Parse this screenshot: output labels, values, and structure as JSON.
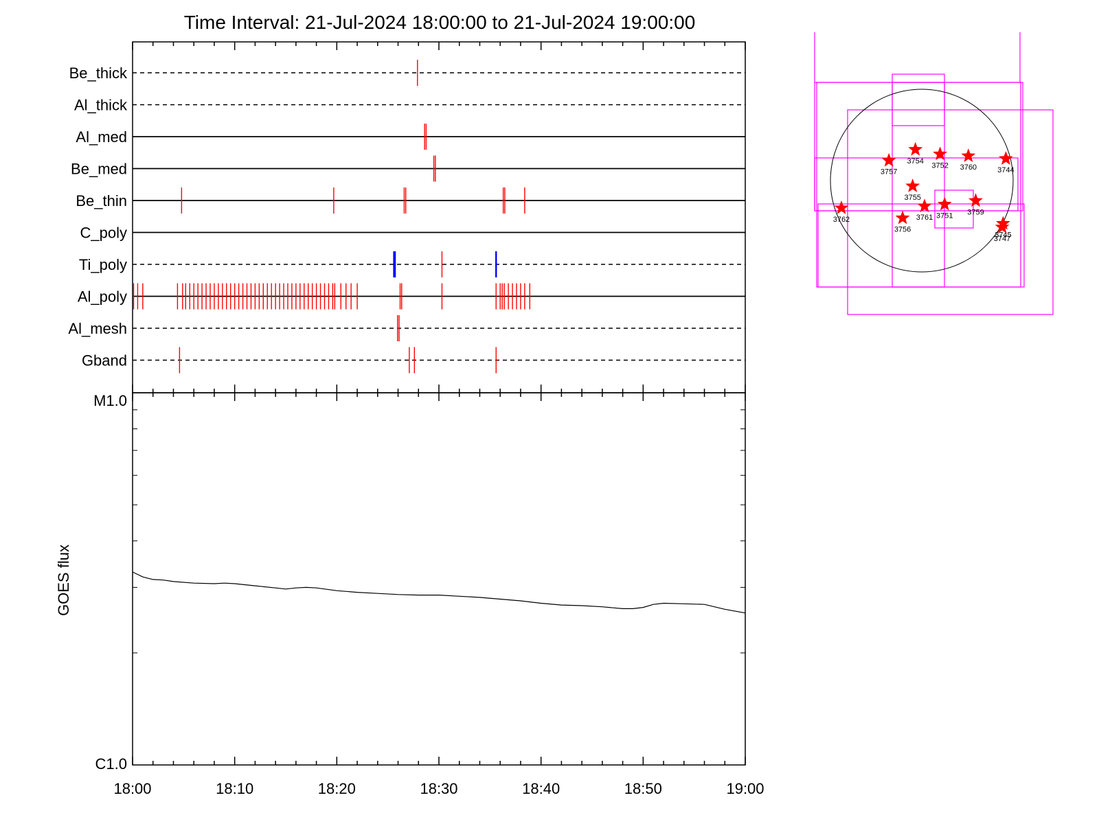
{
  "chart_data": [
    {
      "type": "timeline",
      "title": "Time Interval: 21-Jul-2024 18:00:00 to 21-Jul-2024 19:00:00",
      "x_range": [
        "18:00",
        "19:00"
      ],
      "x_ticks": [
        "18:00",
        "18:10",
        "18:20",
        "18:30",
        "18:40",
        "18:50",
        "19:00"
      ],
      "colors": {
        "event": "#ff0000",
        "event_alt": "#0000ff",
        "row_line": "#000000"
      },
      "rows": [
        {
          "name": "Be_thick",
          "line": "dashed",
          "events": [
            27.9
          ]
        },
        {
          "name": "Al_thick",
          "line": "dashed",
          "events": []
        },
        {
          "name": "Al_med",
          "line": "solid",
          "events": [
            28.6,
            28.75
          ]
        },
        {
          "name": "Be_med",
          "line": "solid",
          "events": [
            29.5,
            29.65
          ]
        },
        {
          "name": "Be_thin",
          "line": "solid",
          "events": [
            4.8,
            19.7,
            26.6,
            26.75,
            36.3,
            36.45,
            38.4
          ]
        },
        {
          "name": "C_poly",
          "line": "solid",
          "events": []
        },
        {
          "name": "Ti_poly",
          "line": "dashed",
          "events": [
            30.3
          ],
          "events_alt": [
            25.6,
            25.7,
            35.6
          ]
        },
        {
          "name": "Al_poly",
          "line": "solid",
          "events": [
            0.1,
            0.5,
            1.0,
            4.4,
            4.9,
            5.2,
            5.6,
            6.0,
            6.4,
            6.8,
            7.2,
            7.6,
            8.0,
            8.4,
            8.8,
            9.2,
            9.6,
            10.0,
            10.4,
            10.8,
            11.2,
            11.6,
            12.0,
            12.4,
            12.8,
            13.2,
            13.6,
            14.0,
            14.4,
            14.8,
            15.2,
            15.6,
            16.0,
            16.4,
            16.8,
            17.2,
            17.6,
            18.0,
            18.4,
            18.8,
            19.2,
            19.6,
            19.8,
            20.4,
            20.9,
            21.4,
            22.0,
            26.2,
            26.35,
            30.3,
            35.6,
            36.0,
            36.2,
            36.4,
            36.8,
            37.2,
            37.6,
            38.0,
            38.4,
            38.9
          ]
        },
        {
          "name": "Al_mesh",
          "line": "dashed",
          "events": [
            25.95,
            26.1
          ]
        },
        {
          "name": "Gband",
          "line": "dashed",
          "events": [
            4.6,
            27.1,
            27.6,
            35.6
          ]
        }
      ]
    },
    {
      "type": "line",
      "ylabel": "GOES flux",
      "yscale": "log",
      "y_ticks": [
        "M1.0",
        "C1.0"
      ],
      "ylim": [
        1e-06,
        1e-05
      ],
      "x_range": [
        "18:00",
        "19:00"
      ],
      "x_ticks": [
        "18:00",
        "18:10",
        "18:20",
        "18:30",
        "18:40",
        "18:50",
        "19:00"
      ],
      "series_color": "#000000",
      "x": [
        0,
        1,
        2,
        3,
        4,
        6,
        8,
        9,
        10,
        12,
        14,
        15,
        16,
        17,
        18,
        20,
        22,
        24,
        26,
        28,
        30,
        32,
        34,
        36,
        38,
        40,
        42,
        44,
        46,
        48,
        49,
        50,
        51,
        52,
        54,
        56,
        58,
        60
      ],
      "y": [
        3.3e-06,
        3.2e-06,
        3.15e-06,
        3.14e-06,
        3.11e-06,
        3.08e-06,
        3.07e-06,
        3.08e-06,
        3.07e-06,
        3.03e-06,
        2.99e-06,
        2.97e-06,
        2.99e-06,
        3e-06,
        2.99e-06,
        2.94e-06,
        2.91e-06,
        2.89e-06,
        2.87e-06,
        2.86e-06,
        2.86e-06,
        2.84e-06,
        2.82e-06,
        2.79e-06,
        2.76e-06,
        2.72e-06,
        2.69e-06,
        2.68e-06,
        2.66e-06,
        2.63e-06,
        2.63e-06,
        2.65e-06,
        2.7e-06,
        2.72e-06,
        2.71e-06,
        2.7e-06,
        2.62e-06,
        2.56e-06
      ]
    },
    {
      "type": "scatter",
      "colors": {
        "marker": "#ff0000",
        "box": "#ff00ff",
        "disk": "#000000"
      },
      "points": [
        {
          "label": "3757",
          "x": -0.36,
          "y": 0.22
        },
        {
          "label": "3754",
          "x": -0.07,
          "y": 0.34
        },
        {
          "label": "3752",
          "x": 0.2,
          "y": 0.29
        },
        {
          "label": "3760",
          "x": 0.51,
          "y": 0.27
        },
        {
          "label": "3744",
          "x": 0.92,
          "y": 0.24
        },
        {
          "label": "3755",
          "x": -0.1,
          "y": -0.06
        },
        {
          "label": "3762",
          "x": -0.88,
          "y": -0.3
        },
        {
          "label": "3761",
          "x": 0.03,
          "y": -0.28
        },
        {
          "label": "3751",
          "x": 0.25,
          "y": -0.26
        },
        {
          "label": "3759",
          "x": 0.59,
          "y": -0.22
        },
        {
          "label": "3756",
          "x": -0.21,
          "y": -0.41
        },
        {
          "label": "3745",
          "x": 0.89,
          "y": -0.47
        },
        {
          "label": "3747",
          "x": 0.88,
          "y": -0.51
        }
      ]
    }
  ]
}
